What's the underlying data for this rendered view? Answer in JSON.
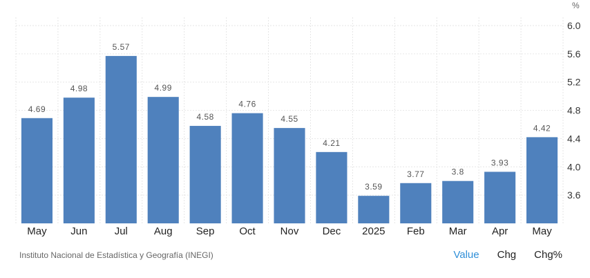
{
  "chart_data": {
    "type": "bar",
    "categories": [
      "May",
      "Jun",
      "Jul",
      "Aug",
      "Sep",
      "Oct",
      "Nov",
      "Dec",
      "2025",
      "Feb",
      "Mar",
      "Apr",
      "May"
    ],
    "values": [
      4.69,
      4.98,
      5.57,
      4.99,
      4.58,
      4.76,
      4.55,
      4.21,
      3.59,
      3.77,
      3.8,
      3.93,
      4.42
    ],
    "value_labels": [
      "4.69",
      "4.98",
      "5.57",
      "4.99",
      "4.58",
      "4.76",
      "4.55",
      "4.21",
      "3.59",
      "3.77",
      "3.8",
      "3.93",
      "4.42"
    ],
    "y_ticks": [
      "3.6",
      "4.0",
      "4.4",
      "4.8",
      "5.2",
      "5.6",
      "6.0"
    ],
    "y_unit": "%",
    "ylim": [
      3.2,
      6.0
    ],
    "grid": true,
    "bar_color": "#4f81bd"
  },
  "footer": {
    "source": "Instituto Nacional de Estadística y Geografía (INEGI)",
    "tabs": [
      {
        "label": "Value",
        "active": true
      },
      {
        "label": "Chg",
        "active": false
      },
      {
        "label": "Chg%",
        "active": false
      }
    ]
  },
  "colors": {
    "accent": "#2f8fd8",
    "bar": "#4f81bd"
  }
}
